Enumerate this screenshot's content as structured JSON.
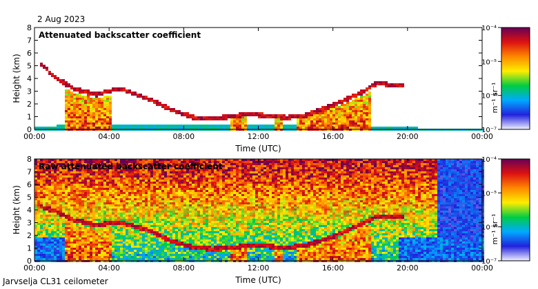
{
  "date_label": "2 Aug 2023",
  "footer_label": "Jarvselja CL31 ceilometer",
  "colorbar": {
    "unit_text": "m⁻¹ sr⁻¹",
    "tick_labels": [
      "10⁻⁴",
      "10⁻⁵",
      "10⁻⁶",
      "10⁻⁷"
    ],
    "scale": "log",
    "range": [
      1e-07,
      0.0001
    ],
    "colors": [
      "#f0f0ff",
      "#2222dd",
      "#00aaff",
      "#00cc44",
      "#ffee00",
      "#ff8800",
      "#dd1111",
      "#660055"
    ]
  },
  "chart_data": [
    {
      "type": "heatmap",
      "title": "Attenuated backscatter coefficient",
      "xlabel": "Time (UTC)",
      "ylabel": "Height (km)",
      "xlim": [
        0,
        24
      ],
      "ylim": [
        0,
        8
      ],
      "x_tick_labels": [
        "00:00",
        "04:00",
        "08:00",
        "12:00",
        "16:00",
        "20:00",
        "00:00"
      ],
      "y_tick_labels": [
        "0",
        "1",
        "2",
        "3",
        "4",
        "5",
        "6",
        "7",
        "8"
      ],
      "layers": [
        {
          "name": "boundary-layer",
          "t": [
            0,
            2,
            4,
            8,
            12,
            16,
            18,
            21,
            24
          ],
          "h": [
            0.35,
            0.4,
            0.4,
            0.4,
            0.45,
            0.4,
            0.3,
            0.2,
            0.15
          ]
        },
        {
          "name": "cloud-layer",
          "t": [
            0.3,
            1.0,
            2.0,
            3.2,
            4.5,
            6.0,
            7.3,
            8.5,
            9.5,
            10.5,
            11.5,
            12.5,
            13.5,
            14.5,
            16.0,
            17.5,
            18.3,
            19.5
          ],
          "h": [
            5.2,
            4.2,
            3.3,
            2.8,
            3.3,
            2.5,
            1.6,
            1.0,
            0.9,
            1.1,
            1.3,
            1.1,
            1.0,
            1.2,
            2.0,
            3.0,
            3.7,
            3.5
          ]
        }
      ]
    },
    {
      "type": "heatmap",
      "title": "Raw attenuated backscatter coefficient",
      "xlabel": "Time (UTC)",
      "ylabel": "Height (km)",
      "xlim": [
        0,
        24
      ],
      "ylim": [
        0,
        8
      ],
      "x_tick_labels": [
        "00:00",
        "04:00",
        "08:00",
        "12:00",
        "16:00",
        "20:00",
        "00:00"
      ],
      "y_tick_labels": [
        "0",
        "1",
        "2",
        "3",
        "4",
        "5",
        "6",
        "7",
        "8"
      ],
      "layers": [
        {
          "name": "cloud-layer",
          "t": [
            0.3,
            1.0,
            2.0,
            3.2,
            4.5,
            6.0,
            7.3,
            8.5,
            9.5,
            10.5,
            11.5,
            12.5,
            13.5,
            14.5,
            16.0,
            17.5,
            18.3,
            19.5
          ],
          "h": [
            4.3,
            4.0,
            3.3,
            2.9,
            3.1,
            2.5,
            1.6,
            1.1,
            1.0,
            1.1,
            1.3,
            1.2,
            1.1,
            1.3,
            2.0,
            3.0,
            3.6,
            3.5
          ]
        }
      ]
    }
  ]
}
